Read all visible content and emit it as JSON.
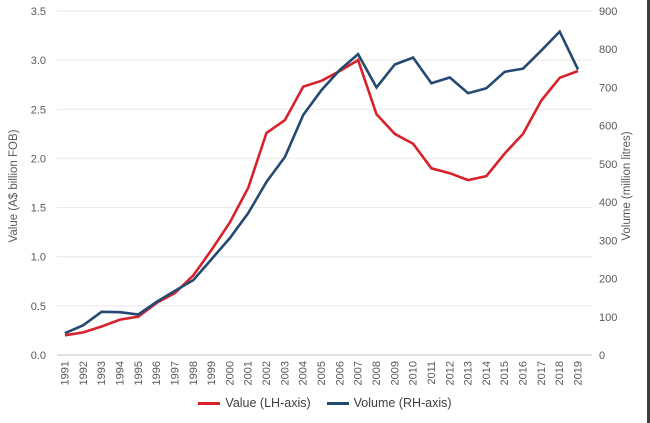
{
  "window": {
    "right_border_color": "#3d3d3d",
    "background_color": "#ffffff"
  },
  "axes": {
    "left": {
      "title": "Value (A$ billion FOB)",
      "ticks": [
        "0.0",
        "0.5",
        "1.0",
        "1.5",
        "2.0",
        "2.5",
        "3.0",
        "3.5"
      ]
    },
    "right": {
      "title": "Volume (million litres)",
      "ticks": [
        "0",
        "100",
        "200",
        "300",
        "400",
        "500",
        "600",
        "700",
        "800",
        "900"
      ]
    }
  },
  "legend": {
    "items": [
      {
        "label": "Value (LH-axis)",
        "color": "#d7222b"
      },
      {
        "label": "Volume (RH-axis)",
        "color": "#254a72"
      }
    ]
  },
  "chart_data": {
    "type": "line",
    "title": "",
    "x": [
      1991,
      1992,
      1993,
      1994,
      1995,
      1996,
      1997,
      1998,
      1999,
      2000,
      2001,
      2002,
      2003,
      2004,
      2005,
      2006,
      2007,
      2008,
      2009,
      2010,
      2011,
      2012,
      2013,
      2014,
      2015,
      2016,
      2017,
      2018,
      2019
    ],
    "series": [
      {
        "name": "Value (LH-axis)",
        "axis": "left",
        "color": "#d7222b",
        "values": [
          0.2,
          0.23,
          0.29,
          0.36,
          0.39,
          0.53,
          0.63,
          0.81,
          1.07,
          1.35,
          1.7,
          2.26,
          2.39,
          2.73,
          2.79,
          2.89,
          3.0,
          2.45,
          2.25,
          2.15,
          1.9,
          1.85,
          1.78,
          1.82,
          2.05,
          2.25,
          2.59,
          2.82,
          2.89
        ]
      },
      {
        "name": "Volume (RH-axis)",
        "axis": "right",
        "color": "#254a72",
        "values": [
          57,
          78,
          113,
          112,
          106,
          139,
          168,
          196,
          251,
          306,
          371,
          453,
          518,
          628,
          693,
          746,
          787,
          700,
          760,
          778,
          711,
          726,
          685,
          698,
          741,
          749,
          797,
          846,
          747
        ]
      }
    ],
    "xlabel": "",
    "ylabel_left": "Value (A$ billion FOB)",
    "ylabel_right": "Volume (million litres)",
    "ylim_left": [
      0,
      3.5
    ],
    "ylim_right": [
      0,
      900
    ],
    "grid": "horizontal-left-ticks",
    "legend_position": "bottom-center",
    "styles": {
      "grid_color": "#ececec",
      "axis_line_color": "#cfcfcf",
      "tick_label_color": "#595959",
      "axis_title_color": "#595959",
      "year_label_color": "#595959",
      "line_width": 2.6
    }
  }
}
